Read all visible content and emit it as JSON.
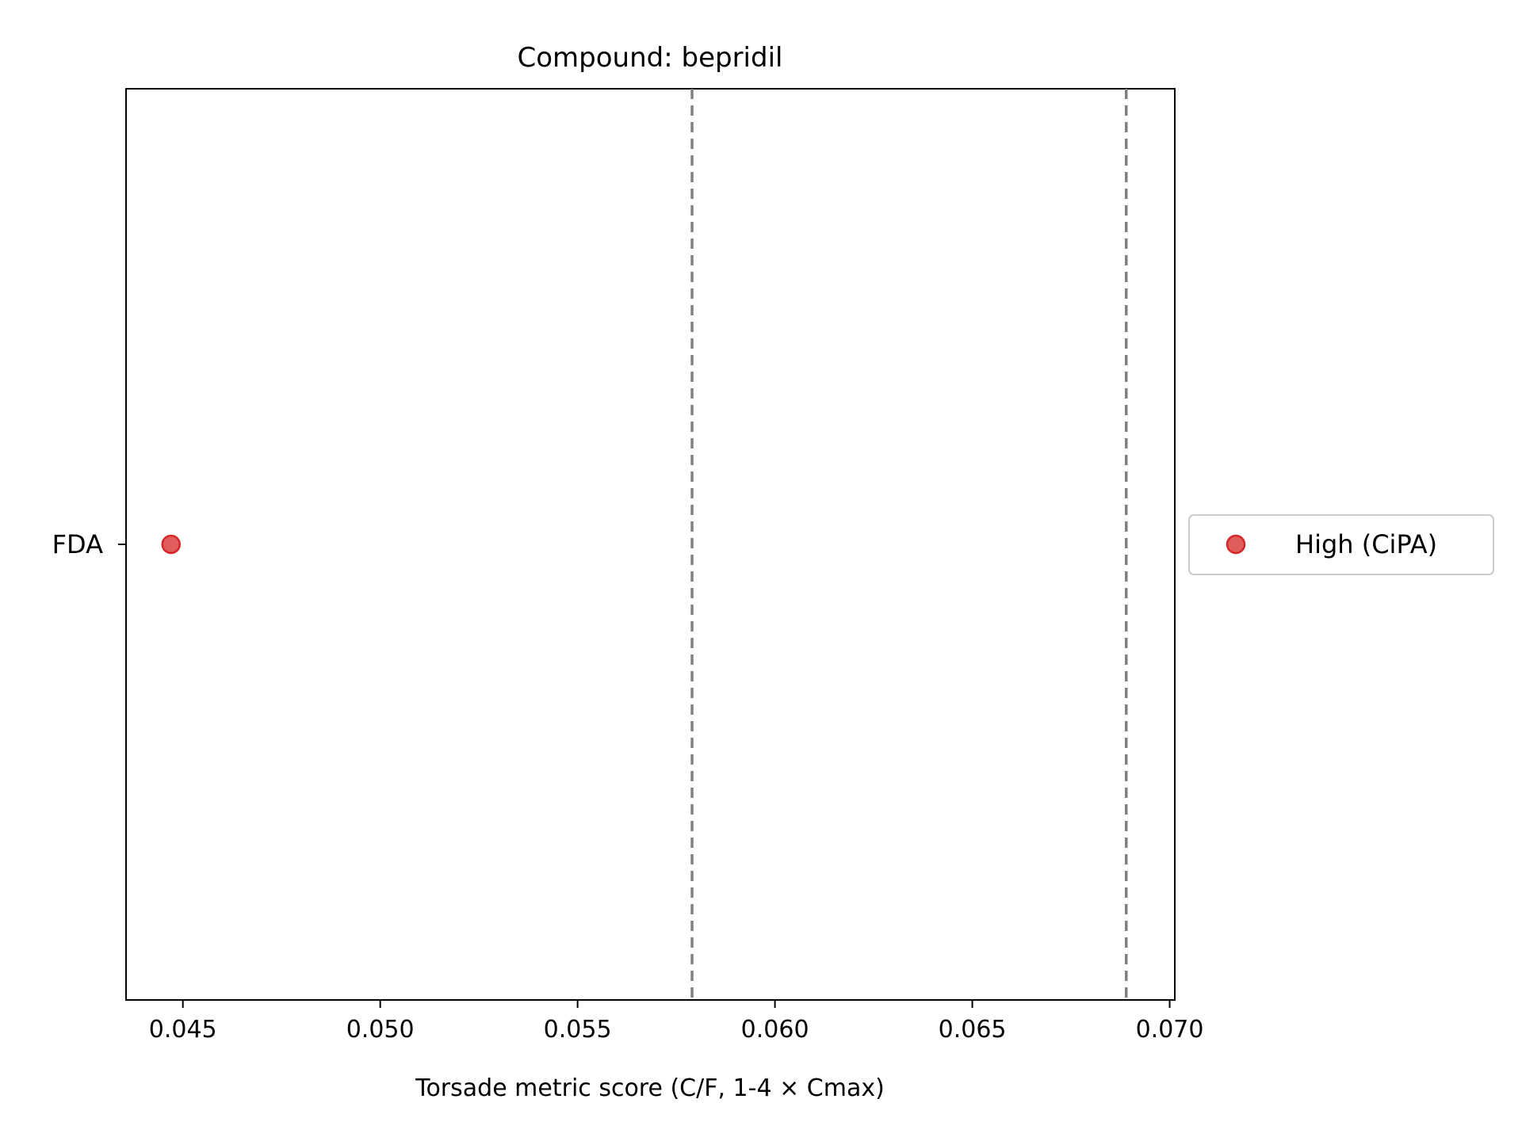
{
  "chart_data": {
    "type": "scatter",
    "title": "Compound: bepridil",
    "xlabel": "Torsade metric score (C/F, 1-4 × Cmax)",
    "ylabel": "",
    "xlim": [
      0.04356,
      0.07013
    ],
    "x_ticks": [
      0.045,
      0.05,
      0.055,
      0.06,
      0.065,
      0.07
    ],
    "x_tick_labels": [
      "0.045",
      "0.050",
      "0.055",
      "0.060",
      "0.065",
      "0.070"
    ],
    "y_categories": [
      "FDA"
    ],
    "grid": false,
    "reference_lines": [
      {
        "x": 0.0579,
        "style": "dashed",
        "color": "#808080"
      },
      {
        "x": 0.0689,
        "style": "dashed",
        "color": "#808080"
      }
    ],
    "series": [
      {
        "name": "High (CiPA)",
        "color": "#d62728",
        "points": [
          {
            "x": 0.0447,
            "y": "FDA"
          }
        ]
      }
    ],
    "legend_position": "center-right, outside"
  }
}
